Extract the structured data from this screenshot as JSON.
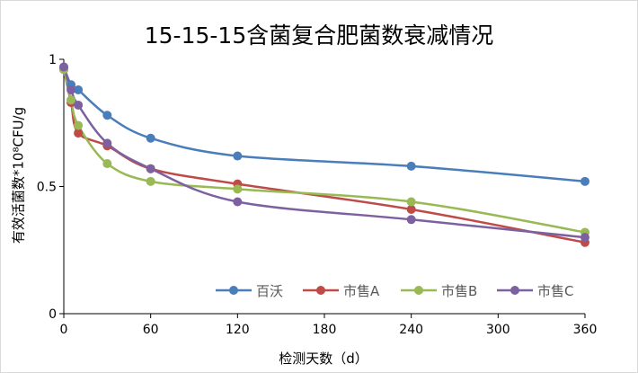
{
  "chart_data": {
    "type": "line",
    "title": "15-15-15含菌复合肥菌数衰减情况",
    "xlabel": "检测天数（d）",
    "ylabel": "有效活菌数*10⁸CFU/g",
    "xlim": [
      0,
      360
    ],
    "ylim": [
      0,
      1
    ],
    "xticks": [
      "0",
      "60",
      "120",
      "180",
      "240",
      "300",
      "360"
    ],
    "yticks": [
      "0",
      "0.5",
      "1"
    ],
    "grid": false,
    "smooth": true,
    "legend_position": "bottom-inside",
    "x": [
      0,
      5,
      10,
      30,
      60,
      120,
      240,
      360
    ],
    "series": [
      {
        "name": "百沃",
        "color": "#4a7ebb",
        "values": [
          0.97,
          0.9,
          0.88,
          0.78,
          0.69,
          0.62,
          0.58,
          0.52
        ]
      },
      {
        "name": "市售A",
        "color": "#be4b48",
        "values": [
          0.96,
          0.83,
          0.71,
          0.66,
          0.57,
          0.51,
          0.41,
          0.28
        ]
      },
      {
        "name": "市售B",
        "color": "#98b954",
        "values": [
          0.96,
          0.84,
          0.74,
          0.59,
          0.52,
          0.49,
          0.44,
          0.32
        ]
      },
      {
        "name": "市售C",
        "color": "#7d60a0",
        "values": [
          0.97,
          0.88,
          0.82,
          0.67,
          0.57,
          0.44,
          0.37,
          0.3
        ]
      }
    ]
  }
}
